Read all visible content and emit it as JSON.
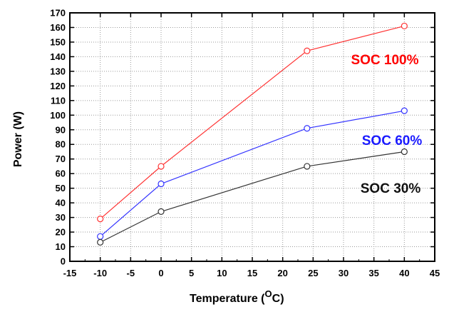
{
  "chart_data": {
    "type": "line",
    "xlabel": "Temperature (",
    "xlabel_unit_sup": "O",
    "xlabel_unit": "C)",
    "ylabel": "Power (W)",
    "xlim": [
      -15,
      45
    ],
    "ylim": [
      0,
      170
    ],
    "x_ticks": [
      -15,
      -10,
      -5,
      0,
      5,
      10,
      15,
      20,
      25,
      30,
      35,
      40,
      45
    ],
    "y_ticks": [
      0,
      10,
      20,
      30,
      40,
      50,
      60,
      70,
      80,
      90,
      100,
      110,
      120,
      130,
      140,
      150,
      160,
      170
    ],
    "grid": true,
    "x": [
      -10,
      0,
      24,
      40
    ],
    "series": [
      {
        "name": "SOC 100%",
        "color": "#ff3333",
        "values": [
          29,
          65,
          144,
          161
        ]
      },
      {
        "name": "SOC 60%",
        "color": "#3333ff",
        "values": [
          17,
          53,
          91,
          103
        ]
      },
      {
        "name": "SOC 30%",
        "color": "#333333",
        "values": [
          13,
          34,
          65,
          75
        ]
      }
    ],
    "series_label_colors": [
      "#ff0000",
      "#1a1aff",
      "#111111"
    ]
  }
}
